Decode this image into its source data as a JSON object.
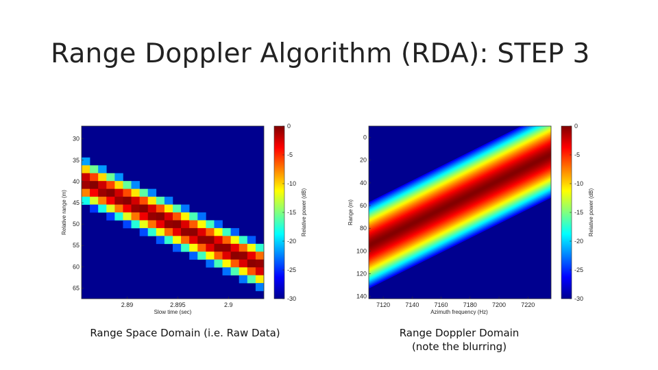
{
  "slide": {
    "title": "Range Doppler Algorithm (RDA): STEP 3",
    "caption_left": "Range Space Domain (i.e. Raw Data)",
    "caption_right_line1": "Range Doppler Domain",
    "caption_right_line2": "(note the blurring)"
  },
  "chart_data": [
    {
      "type": "heatmap",
      "title": "",
      "xlabel": "Slow time (sec)",
      "ylabel": "Relative range (m)",
      "colorbar_label": "Relative power (dB)",
      "colormap": "jet",
      "xlim": [
        2.8855,
        2.9035
      ],
      "ylim": [
        27,
        67.5
      ],
      "x_ticks": [
        "2.89",
        "2.895",
        "2.9"
      ],
      "y_ticks": [
        "30",
        "35",
        "40",
        "45",
        "50",
        "55",
        "60",
        "65"
      ],
      "colorbar_ticks": [
        "0",
        "-5",
        "-10",
        "-15",
        "-20",
        "-25",
        "-30"
      ],
      "clim": [
        -30,
        0
      ],
      "grid": false,
      "band": {
        "center_start": [
          2.8858,
          40
        ],
        "center_end": [
          2.9033,
          60
        ],
        "half_width_m": 5.5
      }
    },
    {
      "type": "heatmap",
      "title": "",
      "xlabel": "Azimuth frequency (Hz)",
      "ylabel": "Range (m)",
      "colorbar_label": "Relative power (dB)",
      "colormap": "jet",
      "xlim": [
        7110,
        7236
      ],
      "ylim": [
        -10,
        142
      ],
      "x_ticks": [
        "7120",
        "7140",
        "7160",
        "7180",
        "7200",
        "7220"
      ],
      "y_ticks": [
        "0",
        "20",
        "40",
        "60",
        "80",
        "100",
        "120",
        "140"
      ],
      "colorbar_ticks": [
        "0",
        "-5",
        "-10",
        "-15",
        "-20",
        "-25",
        "-30"
      ],
      "clim": [
        -30,
        0
      ],
      "grid": false,
      "band": {
        "center_start": [
          7110,
          95
        ],
        "center_end": [
          7236,
          15
        ],
        "half_width_m": 38
      }
    }
  ]
}
